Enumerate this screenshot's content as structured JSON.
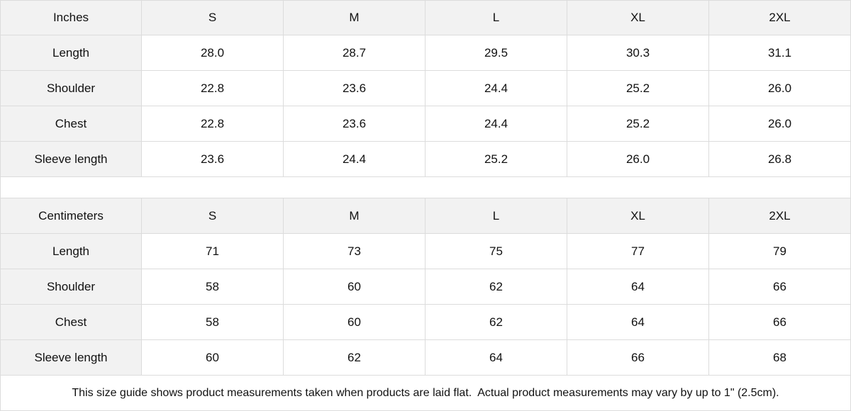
{
  "tables": [
    {
      "unit": "Inches",
      "sizes": [
        "S",
        "M",
        "L",
        "XL",
        "2XL"
      ],
      "rows": [
        {
          "label": "Length",
          "values": [
            "28.0",
            "28.7",
            "29.5",
            "30.3",
            "31.1"
          ]
        },
        {
          "label": "Shoulder",
          "values": [
            "22.8",
            "23.6",
            "24.4",
            "25.2",
            "26.0"
          ]
        },
        {
          "label": "Chest",
          "values": [
            "22.8",
            "23.6",
            "24.4",
            "25.2",
            "26.0"
          ]
        },
        {
          "label": "Sleeve length",
          "values": [
            "23.6",
            "24.4",
            "25.2",
            "26.0",
            "26.8"
          ]
        }
      ]
    },
    {
      "unit": "Centimeters",
      "sizes": [
        "S",
        "M",
        "L",
        "XL",
        "2XL"
      ],
      "rows": [
        {
          "label": "Length",
          "values": [
            "71",
            "73",
            "75",
            "77",
            "79"
          ]
        },
        {
          "label": "Shoulder",
          "values": [
            "58",
            "60",
            "62",
            "64",
            "66"
          ]
        },
        {
          "label": "Chest",
          "values": [
            "58",
            "60",
            "62",
            "64",
            "66"
          ]
        },
        {
          "label": "Sleeve length",
          "values": [
            "60",
            "62",
            "64",
            "66",
            "68"
          ]
        }
      ]
    }
  ],
  "note": "This size guide shows product measurements taken when products are laid flat.  Actual product measurements may vary by up to 1\" (2.5cm).",
  "colors": {
    "header_bg": "#f2f2f2",
    "border": "#dcdcdc"
  }
}
